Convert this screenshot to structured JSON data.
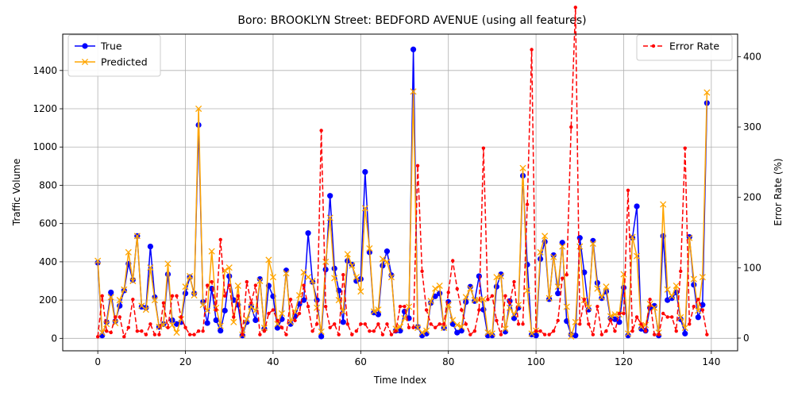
{
  "chart_data": {
    "type": "line",
    "title": "Boro: BROOKLYN Street: BEDFORD AVENUE (using all features)",
    "xlabel": "Time Index",
    "ylabel": "Traffic Volume",
    "y2label": "Error Rate (%)",
    "xlim": [
      -8,
      146
    ],
    "ylim": [
      -65,
      1590
    ],
    "y2lim": [
      -18,
      432
    ],
    "xticks": [
      0,
      20,
      40,
      60,
      80,
      100,
      120,
      140
    ],
    "yticks": [
      0,
      200,
      400,
      600,
      800,
      1000,
      1200,
      1400
    ],
    "y2ticks": [
      0,
      100,
      200,
      300,
      400
    ],
    "grid": true,
    "legend_left_placement": "upper-left",
    "legend_right_placement": "upper-right",
    "x": [
      0,
      1,
      2,
      3,
      4,
      5,
      6,
      7,
      8,
      9,
      10,
      11,
      12,
      13,
      14,
      15,
      16,
      17,
      18,
      19,
      20,
      21,
      22,
      23,
      24,
      25,
      26,
      27,
      28,
      29,
      30,
      31,
      32,
      33,
      34,
      35,
      36,
      37,
      38,
      39,
      40,
      41,
      42,
      43,
      44,
      45,
      46,
      47,
      48,
      49,
      50,
      51,
      52,
      53,
      54,
      55,
      56,
      57,
      58,
      59,
      60,
      61,
      62,
      63,
      64,
      65,
      66,
      67,
      68,
      69,
      70,
      71,
      72,
      73,
      74,
      75,
      76,
      77,
      78,
      79,
      80,
      81,
      82,
      83,
      84,
      85,
      86,
      87,
      88,
      89,
      90,
      91,
      92,
      93,
      94,
      95,
      96,
      97,
      98,
      99,
      100,
      101,
      102,
      103,
      104,
      105,
      106,
      107,
      108,
      109,
      110,
      111,
      112,
      113,
      114,
      115,
      116,
      117,
      118,
      119,
      120,
      121,
      122,
      123,
      124,
      125,
      126,
      127,
      128,
      129,
      130,
      131,
      132,
      133,
      134,
      135,
      136,
      137,
      138,
      139
    ],
    "series": [
      {
        "name": "True",
        "axis": "left",
        "color": "#0000ff",
        "marker": "circle",
        "values": [
          395,
          15,
          85,
          240,
          90,
          170,
          250,
          390,
          305,
          535,
          165,
          160,
          480,
          215,
          60,
          75,
          335,
          95,
          75,
          85,
          235,
          320,
          235,
          1115,
          190,
          80,
          260,
          95,
          40,
          145,
          325,
          200,
          175,
          15,
          85,
          165,
          95,
          310,
          50,
          275,
          220,
          55,
          100,
          355,
          75,
          115,
          180,
          200,
          550,
          295,
          200,
          10,
          360,
          745,
          365,
          250,
          85,
          405,
          385,
          300,
          310,
          870,
          450,
          135,
          125,
          380,
          455,
          330,
          40,
          40,
          140,
          105,
          1510,
          60,
          15,
          25,
          185,
          220,
          235,
          55,
          190,
          75,
          30,
          40,
          190,
          270,
          195,
          325,
          150,
          15,
          15,
          270,
          335,
          35,
          195,
          105,
          160,
          850,
          385,
          20,
          15,
          415,
          505,
          205,
          435,
          235,
          500,
          90,
          20,
          15,
          525,
          345,
          150,
          510,
          290,
          210,
          245,
          105,
          100,
          85,
          265,
          15,
          525,
          690,
          50,
          40,
          160,
          170,
          15,
          535,
          200,
          210,
          240,
          100,
          25,
          530,
          280,
          110,
          175,
          1230
        ]
      },
      {
        "name": "Predicted",
        "axis": "left",
        "color": "#ffa500",
        "marker": "x",
        "values": [
          405,
          30,
          75,
          215,
          80,
          200,
          255,
          450,
          300,
          535,
          170,
          150,
          370,
          200,
          60,
          70,
          390,
          70,
          30,
          100,
          270,
          325,
          225,
          1200,
          175,
          145,
          455,
          160,
          65,
          355,
          370,
          85,
          275,
          20,
          100,
          165,
          145,
          300,
          55,
          410,
          320,
          75,
          130,
          340,
          85,
          140,
          225,
          345,
          320,
          300,
          160,
          35,
          400,
          630,
          315,
          200,
          140,
          440,
          380,
          320,
          245,
          680,
          470,
          140,
          150,
          415,
          400,
          320,
          50,
          60,
          105,
          165,
          1290,
          55,
          30,
          40,
          195,
          260,
          275,
          55,
          175,
          95,
          70,
          60,
          215,
          260,
          200,
          200,
          205,
          30,
          25,
          320,
          325,
          50,
          160,
          125,
          175,
          890,
          250,
          25,
          40,
          450,
          535,
          210,
          425,
          270,
          480,
          165,
          10,
          85,
          480,
          200,
          160,
          495,
          260,
          215,
          270,
          115,
          125,
          125,
          335,
          25,
          530,
          430,
          60,
          70,
          180,
          160,
          30,
          700,
          255,
          220,
          275,
          110,
          55,
          525,
          310,
          145,
          320,
          1285
        ]
      },
      {
        "name": "Error Rate",
        "axis": "right",
        "color": "#ff0000",
        "style": "dashed",
        "marker": "dot",
        "values": [
          2,
          60,
          10,
          8,
          30,
          30,
          2,
          15,
          55,
          10,
          10,
          5,
          20,
          5,
          5,
          50,
          15,
          60,
          60,
          30,
          15,
          5,
          5,
          10,
          10,
          75,
          80,
          40,
          140,
          60,
          75,
          30,
          60,
          5,
          80,
          50,
          75,
          5,
          10,
          35,
          40,
          25,
          15,
          5,
          55,
          25,
          35,
          75,
          45,
          10,
          20,
          295,
          45,
          15,
          20,
          5,
          90,
          20,
          5,
          10,
          20,
          20,
          10,
          10,
          20,
          5,
          20,
          5,
          10,
          45,
          45,
          15,
          15,
          245,
          95,
          40,
          20,
          15,
          20,
          20,
          65,
          110,
          70,
          40,
          20,
          5,
          10,
          40,
          270,
          55,
          60,
          25,
          5,
          60,
          50,
          80,
          20,
          20,
          190,
          410,
          10,
          10,
          5,
          5,
          10,
          25,
          85,
          90,
          300,
          470,
          20,
          55,
          20,
          5,
          45,
          5,
          10,
          25,
          10,
          35,
          35,
          210,
          10,
          30,
          20,
          10,
          55,
          5,
          5,
          35,
          30,
          30,
          10,
          95,
          270,
          20,
          45,
          55,
          40,
          5
        ]
      }
    ]
  }
}
